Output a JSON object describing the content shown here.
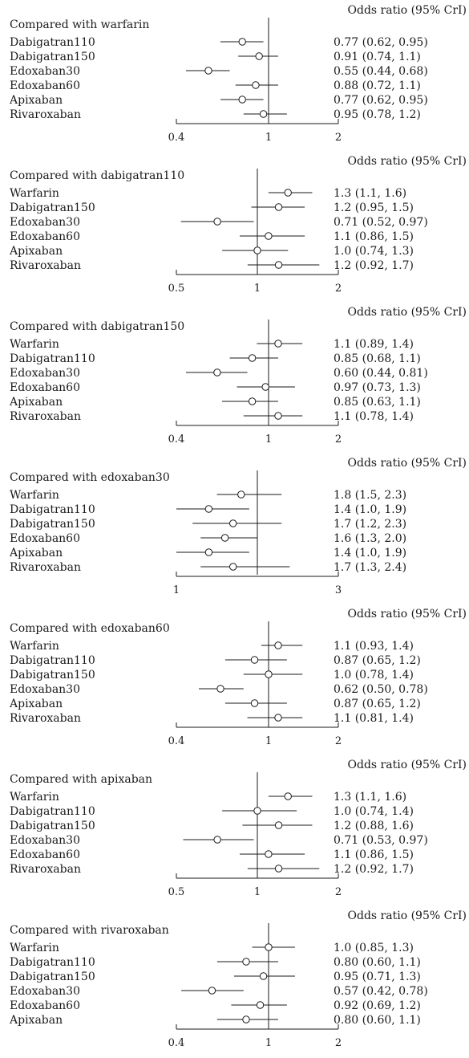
{
  "chart_data": [
    {
      "type": "forest",
      "header": "Odds ratio (95% CrI)",
      "title": "Compared with warfarin",
      "scale": "log",
      "xlim": [
        0.4,
        2
      ],
      "reference": 1,
      "ticks": [
        {
          "value": 0.4,
          "label": "0.4"
        },
        {
          "value": 1,
          "label": "1"
        },
        {
          "value": 2,
          "label": "2"
        }
      ],
      "rows": [
        {
          "label": "Dabigatran110",
          "or": 0.77,
          "lo": 0.62,
          "hi": 0.95,
          "text": "0.77 (0.62, 0.95)"
        },
        {
          "label": "Dabigatran150",
          "or": 0.91,
          "lo": 0.74,
          "hi": 1.1,
          "text": "0.91 (0.74, 1.1)"
        },
        {
          "label": "Edoxaban30",
          "or": 0.55,
          "lo": 0.44,
          "hi": 0.68,
          "text": "0.55 (0.44, 0.68)"
        },
        {
          "label": "Edoxaban60",
          "or": 0.88,
          "lo": 0.72,
          "hi": 1.1,
          "text": "0.88 (0.72, 1.1)"
        },
        {
          "label": "Apixaban",
          "or": 0.77,
          "lo": 0.62,
          "hi": 0.95,
          "text": "0.77 (0.62, 0.95)"
        },
        {
          "label": "Rivaroxaban",
          "or": 0.95,
          "lo": 0.78,
          "hi": 1.2,
          "text": "0.95 (0.78, 1.2)"
        }
      ]
    },
    {
      "type": "forest",
      "header": "Odds ratio (95% CrI)",
      "title": "Compared with dabigatran110",
      "scale": "log",
      "xlim": [
        0.5,
        2
      ],
      "reference": 1,
      "ticks": [
        {
          "value": 0.5,
          "label": "0.5"
        },
        {
          "value": 1,
          "label": "1"
        },
        {
          "value": 2,
          "label": "2"
        }
      ],
      "rows": [
        {
          "label": "Warfarin",
          "or": 1.3,
          "lo": 1.1,
          "hi": 1.6,
          "text": "1.3 (1.1, 1.6)"
        },
        {
          "label": "Dabigatran150",
          "or": 1.2,
          "lo": 0.95,
          "hi": 1.5,
          "text": "1.2 (0.95, 1.5)"
        },
        {
          "label": "Edoxaban30",
          "or": 0.71,
          "lo": 0.52,
          "hi": 0.97,
          "text": "0.71 (0.52, 0.97)"
        },
        {
          "label": "Edoxaban60",
          "or": 1.1,
          "lo": 0.86,
          "hi": 1.5,
          "text": "1.1 (0.86, 1.5)"
        },
        {
          "label": "Apixaban",
          "or": 1.0,
          "lo": 0.74,
          "hi": 1.3,
          "text": "1.0 (0.74, 1.3)"
        },
        {
          "label": "Rivaroxaban",
          "or": 1.2,
          "lo": 0.92,
          "hi": 1.7,
          "text": "1.2 (0.92, 1.7)"
        }
      ]
    },
    {
      "type": "forest",
      "header": "Odds ratio (95% CrI)",
      "title": "Compared with dabigatran150",
      "scale": "log",
      "xlim": [
        0.4,
        2
      ],
      "reference": 1,
      "ticks": [
        {
          "value": 0.4,
          "label": "0.4"
        },
        {
          "value": 1,
          "label": "1"
        },
        {
          "value": 2,
          "label": "2"
        }
      ],
      "rows": [
        {
          "label": "Warfarin",
          "or": 1.1,
          "lo": 0.89,
          "hi": 1.4,
          "text": "1.1 (0.89, 1.4)"
        },
        {
          "label": "Dabigatran110",
          "or": 0.85,
          "lo": 0.68,
          "hi": 1.1,
          "text": "0.85 (0.68, 1.1)"
        },
        {
          "label": "Edoxaban30",
          "or": 0.6,
          "lo": 0.44,
          "hi": 0.81,
          "text": "0.60 (0.44, 0.81)"
        },
        {
          "label": "Edoxaban60",
          "or": 0.97,
          "lo": 0.73,
          "hi": 1.3,
          "text": "0.97 (0.73, 1.3)"
        },
        {
          "label": "Apixaban",
          "or": 0.85,
          "lo": 0.63,
          "hi": 1.1,
          "text": "0.85 (0.63, 1.1)"
        },
        {
          "label": "Rivaroxaban",
          "or": 1.1,
          "lo": 0.78,
          "hi": 1.4,
          "text": "1.1 (0.78, 1.4)"
        }
      ]
    },
    {
      "type": "forest",
      "header": "Odds ratio (95% CrI)",
      "title": "Compared with edoxaban30",
      "scale": "linear",
      "xlim": [
        1,
        3
      ],
      "reference": 2,
      "ticks": [
        {
          "value": 1,
          "label": "1"
        },
        {
          "value": 3,
          "label": "3"
        }
      ],
      "rows": [
        {
          "label": "Warfarin",
          "or": 1.8,
          "lo": 1.5,
          "hi": 2.3,
          "text": "1.8 (1.5, 2.3)"
        },
        {
          "label": "Dabigatran110",
          "or": 1.4,
          "lo": 1.0,
          "hi": 1.9,
          "text": "1.4 (1.0, 1.9)"
        },
        {
          "label": "Dabigatran150",
          "or": 1.7,
          "lo": 1.2,
          "hi": 2.3,
          "text": "1.7 (1.2, 2.3)"
        },
        {
          "label": "Edoxaban60",
          "or": 1.6,
          "lo": 1.3,
          "hi": 2.0,
          "text": "1.6 (1.3, 2.0)"
        },
        {
          "label": "Apixaban",
          "or": 1.4,
          "lo": 1.0,
          "hi": 1.9,
          "text": "1.4 (1.0, 1.9)"
        },
        {
          "label": "Rivaroxaban",
          "or": 1.7,
          "lo": 1.3,
          "hi": 2.4,
          "text": "1.7 (1.3, 2.4)"
        }
      ]
    },
    {
      "type": "forest",
      "header": "Odds ratio (95% CrI)",
      "title": "Compared with edoxaban60",
      "scale": "log",
      "xlim": [
        0.4,
        2
      ],
      "reference": 1,
      "ticks": [
        {
          "value": 0.4,
          "label": "0.4"
        },
        {
          "value": 1,
          "label": "1"
        },
        {
          "value": 2,
          "label": "2"
        }
      ],
      "rows": [
        {
          "label": "Warfarin",
          "or": 1.1,
          "lo": 0.93,
          "hi": 1.4,
          "text": "1.1 (0.93, 1.4)"
        },
        {
          "label": "Dabigatran110",
          "or": 0.87,
          "lo": 0.65,
          "hi": 1.2,
          "text": "0.87 (0.65, 1.2)"
        },
        {
          "label": "Dabigatran150",
          "or": 1.0,
          "lo": 0.78,
          "hi": 1.4,
          "text": "1.0 (0.78, 1.4)"
        },
        {
          "label": "Edoxaban30",
          "or": 0.62,
          "lo": 0.5,
          "hi": 0.78,
          "text": "0.62 (0.50, 0.78)"
        },
        {
          "label": "Apixaban",
          "or": 0.87,
          "lo": 0.65,
          "hi": 1.2,
          "text": "0.87 (0.65, 1.2)"
        },
        {
          "label": "Rivaroxaban",
          "or": 1.1,
          "lo": 0.81,
          "hi": 1.4,
          "text": "1.1 (0.81, 1.4)"
        }
      ]
    },
    {
      "type": "forest",
      "header": "Odds ratio (95% CrI)",
      "title": "Compared with apixaban",
      "scale": "log",
      "xlim": [
        0.5,
        2
      ],
      "reference": 1,
      "ticks": [
        {
          "value": 0.5,
          "label": "0.5"
        },
        {
          "value": 1,
          "label": "1"
        },
        {
          "value": 2,
          "label": "2"
        }
      ],
      "rows": [
        {
          "label": "Warfarin",
          "or": 1.3,
          "lo": 1.1,
          "hi": 1.6,
          "text": "1.3 (1.1, 1.6)"
        },
        {
          "label": "Dabigatran110",
          "or": 1.0,
          "lo": 0.74,
          "hi": 1.4,
          "text": "1.0 (0.74, 1.4)"
        },
        {
          "label": "Dabigatran150",
          "or": 1.2,
          "lo": 0.88,
          "hi": 1.6,
          "text": "1.2 (0.88, 1.6)"
        },
        {
          "label": "Edoxaban30",
          "or": 0.71,
          "lo": 0.53,
          "hi": 0.97,
          "text": "0.71 (0.53, 0.97)"
        },
        {
          "label": "Edoxaban60",
          "or": 1.1,
          "lo": 0.86,
          "hi": 1.5,
          "text": "1.1 (0.86, 1.5)"
        },
        {
          "label": "Rivaroxaban",
          "or": 1.2,
          "lo": 0.92,
          "hi": 1.7,
          "text": "1.2 (0.92, 1.7)"
        }
      ]
    },
    {
      "type": "forest",
      "header": "Odds ratio (95% CrI)",
      "title": "Compared with rivaroxaban",
      "scale": "log",
      "xlim": [
        0.4,
        2
      ],
      "reference": 1,
      "ticks": [
        {
          "value": 0.4,
          "label": "0.4"
        },
        {
          "value": 1,
          "label": "1"
        },
        {
          "value": 2,
          "label": "2"
        }
      ],
      "rows": [
        {
          "label": "Warfarin",
          "or": 1.0,
          "lo": 0.85,
          "hi": 1.3,
          "text": "1.0 (0.85, 1.3)"
        },
        {
          "label": "Dabigatran110",
          "or": 0.8,
          "lo": 0.6,
          "hi": 1.1,
          "text": "0.80 (0.60, 1.1)"
        },
        {
          "label": "Dabigatran150",
          "or": 0.95,
          "lo": 0.71,
          "hi": 1.3,
          "text": "0.95 (0.71, 1.3)"
        },
        {
          "label": "Edoxaban30",
          "or": 0.57,
          "lo": 0.42,
          "hi": 0.78,
          "text": "0.57 (0.42, 0.78)"
        },
        {
          "label": "Edoxaban60",
          "or": 0.92,
          "lo": 0.69,
          "hi": 1.2,
          "text": "0.92 (0.69, 1.2)"
        },
        {
          "label": "Apixaban",
          "or": 0.8,
          "lo": 0.6,
          "hi": 1.1,
          "text": "0.80 (0.60, 1.1)"
        }
      ]
    }
  ]
}
